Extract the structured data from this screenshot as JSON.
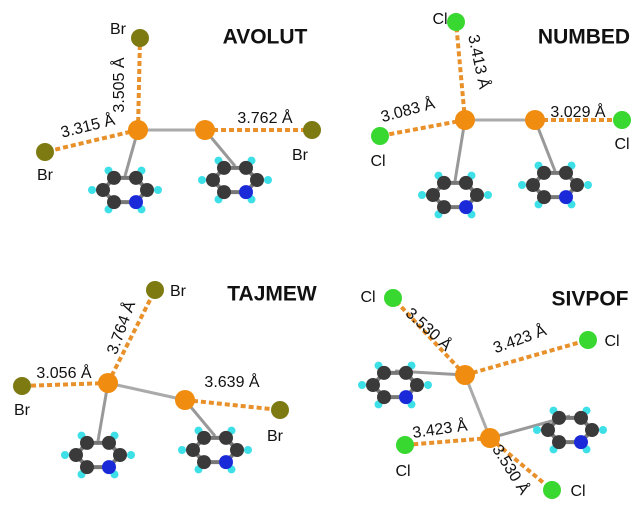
{
  "panels": [
    {
      "title": "AVOLUT",
      "atom_labels": [
        "Br",
        "Br",
        "Br"
      ],
      "distances": [
        "3.505 Å",
        "3.315 Å",
        "3.762 Å"
      ]
    },
    {
      "title": "NUMBED",
      "atom_labels": [
        "Cl",
        "Cl",
        "Cl"
      ],
      "distances": [
        "3.413 Å",
        "3.083 Å",
        "3.029 Å"
      ]
    },
    {
      "title": "TAJMEW",
      "atom_labels": [
        "Br",
        "Br",
        "Br"
      ],
      "distances": [
        "3.764 Å",
        "3.056 Å",
        "3.639 Å"
      ]
    },
    {
      "title": "SIVPOF",
      "atom_labels": [
        "Cl",
        "Cl",
        "Cl",
        "Cl"
      ],
      "distances": [
        "3.530 Å",
        "3.423 Å",
        "3.423 Å",
        "3.530 Å"
      ]
    }
  ]
}
